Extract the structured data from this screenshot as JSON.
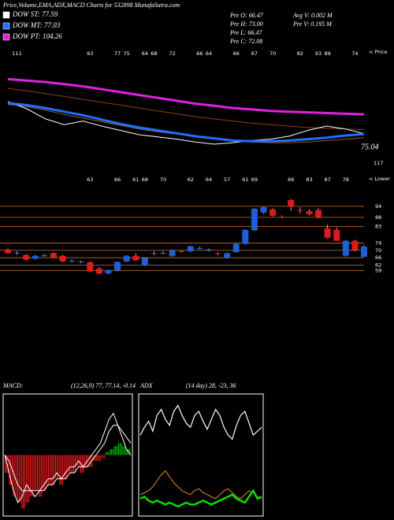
{
  "chart_data": [
    {
      "type": "line",
      "title": "Price,Volume,EMA,ADX,MACD Charts for 532898 MunafaSutra.com",
      "info": [
        "Pre O: 66.47",
        "Pre H: 73.00",
        "Pre L: 66.47",
        "Pre C: 72.08"
      ],
      "info2": [
        "Avg V: 0.002 M",
        "Pre V: 0.195 M"
      ],
      "side_label": "< Price",
      "annotations": [
        "75.04",
        "117"
      ],
      "top_labels": [
        null,
        "111",
        null,
        null,
        null,
        null,
        null,
        null,
        null,
        "93",
        null,
        null,
        "77",
        "75",
        null,
        "64",
        "68",
        null,
        "72",
        null,
        null,
        "66",
        "64",
        null,
        null,
        "66",
        null,
        "67",
        null,
        "70",
        null,
        null,
        "82",
        null,
        "93",
        "89",
        null,
        null,
        "74",
        null
      ],
      "ylim": [
        39,
        197
      ],
      "series": [
        {
          "name": "DOW ST: 77.59",
          "color": "#ffffff",
          "values": [
            122,
            112,
            98,
            90,
            95,
            88,
            82,
            76,
            73,
            70,
            66,
            63,
            65,
            68,
            70,
            74,
            82,
            88,
            84,
            77.59
          ]
        },
        {
          "name": "DOW MT: 77.03",
          "color": "#1f6fff",
          "values": [
            120,
            117,
            113,
            108,
            103,
            97,
            91,
            86,
            82,
            78,
            74,
            71,
            68,
            67,
            67,
            68,
            70,
            72,
            75,
            77.03
          ]
        },
        {
          "name": "DOW PT: 104.26",
          "color": "#e020e0",
          "values": [
            153,
            151,
            149,
            146,
            143,
            139,
            135,
            131,
            127,
            123,
            119,
            116,
            113,
            111,
            109,
            108,
            107,
            106,
            105,
            104.26
          ]
        },
        {
          "color": "#8b4513",
          "values": [
            140,
            137,
            133,
            129,
            125,
            121,
            117,
            113,
            109,
            105,
            101,
            98,
            95,
            92,
            90,
            88,
            86,
            85,
            84,
            83
          ]
        },
        {
          "color": "#a0522d",
          "values": [
            118,
            115,
            110,
            104,
            99,
            94,
            89,
            84,
            80,
            77,
            73,
            70,
            68,
            66,
            65,
            65,
            66,
            68,
            70,
            72
          ]
        }
      ]
    },
    {
      "type": "candlestick",
      "side_label": "< Lower",
      "up_color": "#1e5fd8",
      "down_color": "#e01b1b",
      "grid_color": "#c8702a",
      "ylim": [
        54,
        112
      ],
      "yticks": [
        94,
        88,
        83,
        74,
        70,
        66,
        62,
        59
      ],
      "top_labels": [
        null,
        null,
        null,
        null,
        null,
        null,
        null,
        null,
        null,
        "63",
        null,
        null,
        "66",
        null,
        "61",
        "68",
        null,
        "70",
        null,
        null,
        "62",
        null,
        "64",
        null,
        "57",
        null,
        "61",
        "69",
        null,
        null,
        null,
        "66",
        null,
        "83",
        null,
        "87",
        null,
        "78",
        null,
        null
      ],
      "open": [
        70.5,
        68.5,
        67.5,
        65.5,
        67,
        68.5,
        67,
        64,
        63.8,
        63.5,
        60,
        57.5,
        59,
        64,
        67,
        62,
        68.3,
        68.3,
        67,
        69.5,
        69.5,
        71,
        70.3,
        68.5,
        66,
        69,
        73.5,
        81,
        90.6,
        92.3,
        88.3,
        97.4,
        92,
        91.4,
        92,
        82,
        81.2,
        67.1,
        75.2,
        66.47
      ],
      "high": [
        71,
        69.5,
        68,
        67.5,
        68,
        69,
        67.5,
        65,
        64.5,
        64,
        61,
        59.5,
        64,
        67.5,
        68.5,
        66,
        69.5,
        69.5,
        70.5,
        70,
        72.5,
        72,
        71,
        69,
        68.8,
        73.8,
        81.5,
        93,
        93.8,
        93,
        89,
        98,
        93.5,
        92.5,
        93,
        84,
        82.5,
        75.5,
        75.8,
        73
      ],
      "low": [
        68,
        67.5,
        64.5,
        65,
        66.5,
        65.8,
        63.5,
        63.5,
        63,
        58,
        57,
        57,
        58.5,
        63.5,
        64.3,
        61.5,
        67.5,
        67.8,
        66.5,
        68.8,
        69,
        70.5,
        69.5,
        67.5,
        65.5,
        68.8,
        73,
        80.5,
        90,
        88.5,
        87.5,
        91.5,
        90,
        89,
        87.5,
        76.5,
        75.5,
        66.5,
        69.5,
        66.47
      ],
      "close": [
        68.5,
        68.8,
        65,
        67,
        67.5,
        66.2,
        64,
        64.3,
        64,
        58.5,
        57.3,
        59.3,
        63.7,
        67,
        64.6,
        65.8,
        68.5,
        68.6,
        70,
        69.2,
        72.2,
        71.2,
        70.5,
        68.2,
        68.4,
        73.5,
        81.2,
        92.7,
        93.6,
        88.9,
        88,
        94,
        91.9,
        89.7,
        88,
        76.9,
        75.2,
        75.2,
        70.1,
        72.08
      ]
    },
    {
      "type": "macd",
      "title": "MACD:",
      "subtitle": "(12,26,9) 77, 77.14, -0.14",
      "up_color": "#00cc00",
      "down_color": "#ff2020",
      "ylim": [
        -10,
        10
      ],
      "histogram": [
        -3,
        -5,
        -7,
        -8,
        -9,
        -8,
        -7,
        -6,
        -7,
        -6,
        -5,
        -5,
        -4,
        -5,
        -4,
        -3,
        -3,
        -2,
        -3,
        -2,
        -2,
        -1,
        -1,
        -0.5,
        0.5,
        1,
        1.5,
        2,
        1.5,
        1
      ],
      "series": [
        {
          "color": "#ffffff",
          "values": [
            0,
            -3,
            -6,
            -8,
            -7,
            -5,
            -6,
            -7,
            -6,
            -5,
            -4,
            -4,
            -3,
            -4,
            -3,
            -2,
            -2,
            -1,
            -2,
            -1,
            0,
            1,
            2,
            4,
            6,
            7,
            5,
            3,
            1,
            0
          ]
        },
        {
          "color": "#ffffff",
          "values": [
            0,
            -1,
            -3,
            -5,
            -6,
            -6,
            -6,
            -6,
            -6,
            -6,
            -5,
            -5,
            -4,
            -4,
            -4,
            -3,
            -3,
            -2,
            -2,
            -2,
            -1,
            0,
            1,
            2,
            4,
            5,
            5,
            4,
            3,
            2
          ]
        }
      ]
    },
    {
      "type": "adx",
      "title": "ADX",
      "subtitle": "(14 day) 28, -23, 36",
      "ylim": [
        0,
        60
      ],
      "series": [
        {
          "color": "#ffffff",
          "values": [
            40,
            44,
            47,
            42,
            50,
            53,
            48,
            45,
            52,
            55,
            50,
            46,
            44,
            50,
            52,
            47,
            43,
            48,
            53,
            50,
            44,
            40,
            38,
            45,
            50,
            52,
            46,
            40,
            42,
            44
          ]
        },
        {
          "color": "#c87020",
          "values": [
            10,
            11,
            12,
            14,
            17,
            20,
            22,
            19,
            16,
            14,
            12,
            11,
            10,
            12,
            13,
            11,
            10,
            9,
            8,
            10,
            12,
            13,
            11,
            9,
            8,
            10,
            12,
            11,
            9,
            8
          ]
        },
        {
          "color": "#00dd00",
          "values": [
            8,
            9,
            7,
            6,
            7,
            6,
            5,
            6,
            5,
            4,
            5,
            6,
            5,
            5,
            6,
            7,
            6,
            5,
            6,
            7,
            8,
            9,
            10,
            8,
            7,
            6,
            9,
            12,
            8,
            9
          ]
        }
      ]
    }
  ]
}
